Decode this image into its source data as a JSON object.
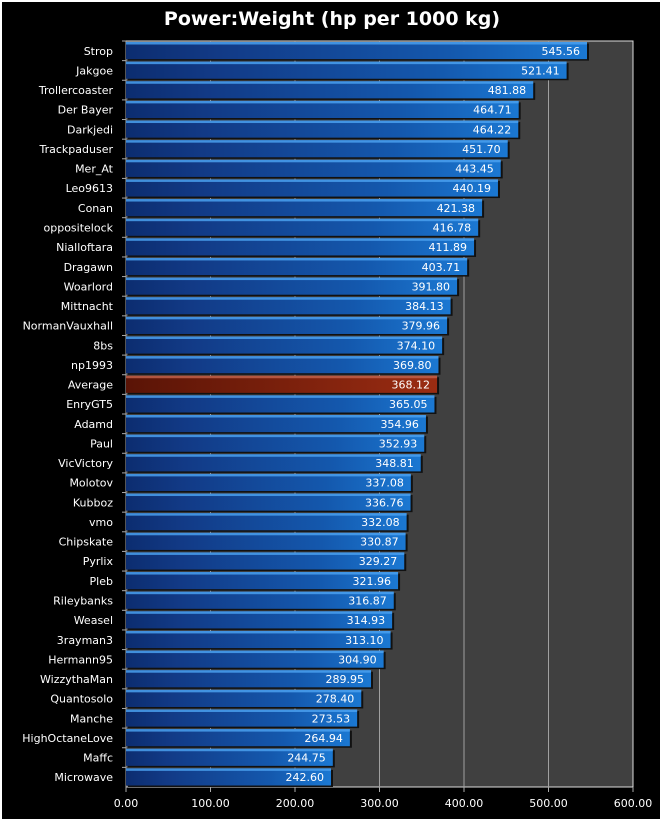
{
  "chart_data": {
    "type": "bar",
    "orientation": "horizontal",
    "title": "Power:Weight (hp per 1000 kg)",
    "xlabel": "",
    "ylabel": "",
    "xlim": [
      0,
      600
    ],
    "x_ticks": [
      "0.00",
      "100.00",
      "200.00",
      "300.00",
      "400.00",
      "500.00",
      "600.00"
    ],
    "grid": true,
    "highlight_category": "Average",
    "colors": {
      "bar": "#1560b8",
      "highlight": "#8a2410",
      "plot_bg": "#404040",
      "grid": "#a0a0a0"
    },
    "categories": [
      "Strop",
      "Jakgoe",
      "Trollercoaster",
      "Der Bayer",
      "Darkjedi",
      "Trackpaduser",
      "Mer_At",
      "Leo9613",
      "Conan",
      "oppositelock",
      "Nialloftara",
      "Dragawn",
      "Woarlord",
      "Mittnacht",
      "NormanVauxhall",
      "8bs",
      "np1993",
      "Average",
      "EnryGT5",
      "Adamd",
      "Paul",
      "VicVictory",
      "Molotov",
      "Kubboz",
      "vmo",
      "Chipskate",
      "Pyrlix",
      "Pleb",
      "Rileybanks",
      "Weasel",
      "3rayman3",
      "Hermann95",
      "WizzythaMan",
      "Quantosolo",
      "Manche",
      "HighOctaneLove",
      "Maffc",
      "Microwave"
    ],
    "values": [
      545.56,
      521.41,
      481.88,
      464.71,
      464.22,
      451.7,
      443.45,
      440.19,
      421.38,
      416.78,
      411.89,
      403.71,
      391.8,
      384.13,
      379.96,
      374.1,
      369.8,
      368.12,
      365.05,
      354.96,
      352.93,
      348.81,
      337.08,
      336.76,
      332.08,
      330.87,
      329.27,
      321.96,
      316.87,
      314.93,
      313.1,
      304.9,
      289.95,
      278.4,
      273.53,
      264.94,
      244.75,
      242.6
    ],
    "value_labels": [
      "545.56",
      "521.41",
      "481.88",
      "464.71",
      "464.22",
      "451.70",
      "443.45",
      "440.19",
      "421.38",
      "416.78",
      "411.89",
      "403.71",
      "391.80",
      "384.13",
      "379.96",
      "374.10",
      "369.80",
      "368.12",
      "365.05",
      "354.96",
      "352.93",
      "348.81",
      "337.08",
      "336.76",
      "332.08",
      "330.87",
      "329.27",
      "321.96",
      "316.87",
      "314.93",
      "313.10",
      "304.90",
      "289.95",
      "278.40",
      "273.53",
      "264.94",
      "244.75",
      "242.60"
    ]
  }
}
